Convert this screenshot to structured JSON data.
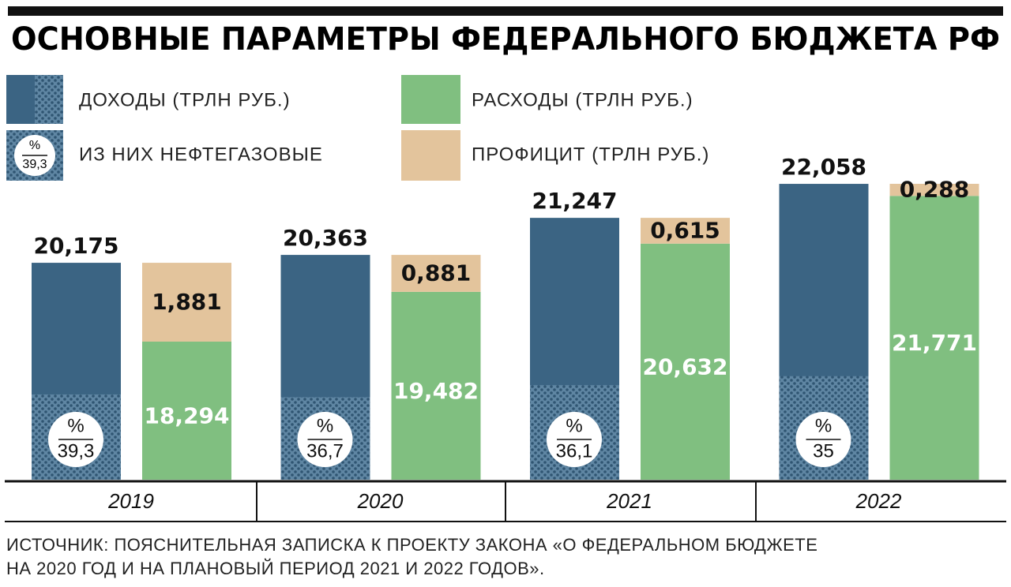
{
  "chart_data": {
    "type": "bar",
    "title": "ОСНОВНЫЕ ПАРАМЕТРЫ ФЕДЕРАЛЬНОГО БЮДЖЕТА РФ",
    "categories": [
      "2019",
      "2020",
      "2021",
      "2022"
    ],
    "ylim": [
      15,
      23
    ],
    "series": [
      {
        "name": "ДОХОДЫ (ТРЛН РУБ.)",
        "color": "#3b6483",
        "values": [
          20.175,
          20.363,
          21.247,
          22.058
        ],
        "value_labels": [
          "20,175",
          "20,363",
          "21,247",
          "22,058"
        ]
      },
      {
        "name": "ИЗ НИХ НЕФТЕГАЗОВЫЕ",
        "color": "#5f86a3",
        "unit": "%",
        "values": [
          39.3,
          36.7,
          36.1,
          35
        ],
        "value_labels": [
          "39,3",
          "36,7",
          "36,1",
          "35"
        ]
      },
      {
        "name": "РАСХОДЫ (ТРЛН РУБ.)",
        "color": "#80bf80",
        "values": [
          18.294,
          19.482,
          20.632,
          21.771
        ],
        "value_labels": [
          "18,294",
          "19,482",
          "20,632",
          "21,771"
        ]
      },
      {
        "name": "ПРОФИЦИТ (ТРЛН РУБ.)",
        "color": "#e3c49c",
        "values": [
          1.881,
          0.881,
          0.615,
          0.288
        ],
        "value_labels": [
          "1,881",
          "0,881",
          "0,615",
          "0,288"
        ]
      }
    ],
    "source": [
      "ИСТОЧНИК: ПОЯСНИТЕЛЬНАЯ ЗАПИСКА К ПРОЕКТУ ЗАКОНА «О ФЕДЕРАЛЬНОМ БЮДЖЕТЕ",
      "НА 2020 ГОД И НА ПЛАНОВЫЙ ПЕРИОД 2021 И 2022 ГОДОВ»."
    ]
  }
}
